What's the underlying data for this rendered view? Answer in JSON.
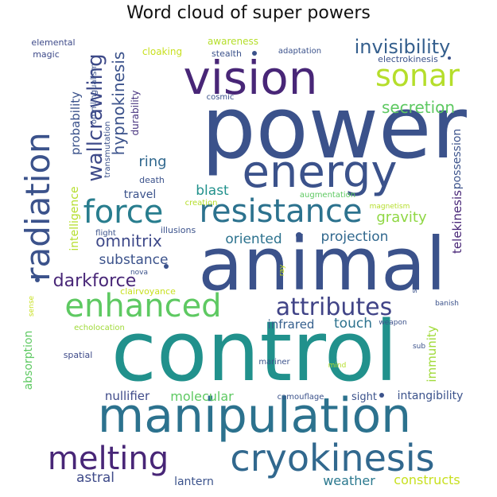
{
  "title": "Word cloud of super powers",
  "words": [
    {
      "text": "power",
      "color": "#3b528b"
    },
    {
      "text": "control",
      "color": "#21918c"
    },
    {
      "text": "animal",
      "color": "#3b528b"
    },
    {
      "text": "manipulation",
      "color": "#2c728e"
    },
    {
      "text": "energy",
      "color": "#3b528b"
    },
    {
      "text": "vision",
      "color": "#482677"
    },
    {
      "text": "cryokinesis",
      "color": "#31688e"
    },
    {
      "text": "resistance",
      "color": "#2c728e"
    },
    {
      "text": "force",
      "color": "#287d8e"
    },
    {
      "text": "radiation",
      "color": "#3b528b"
    },
    {
      "text": "enhanced",
      "color": "#5ec962"
    },
    {
      "text": "melting",
      "color": "#482677"
    },
    {
      "text": "attributes",
      "color": "#414487"
    },
    {
      "text": "sonar",
      "color": "#b5de2b"
    },
    {
      "text": "invisibility",
      "color": "#355f8d"
    },
    {
      "text": "wallcrawling",
      "color": "#3e4a89"
    },
    {
      "text": "hypnokinesis",
      "color": "#3b528b"
    },
    {
      "text": "secretion",
      "color": "#5ec962"
    },
    {
      "text": "darkforce",
      "color": "#482677"
    },
    {
      "text": "omnitrix",
      "color": "#3e4989"
    },
    {
      "text": "projection",
      "color": "#31688e"
    },
    {
      "text": "oriented",
      "color": "#2c728e"
    },
    {
      "text": "gravity",
      "color": "#8fd744"
    },
    {
      "text": "blast",
      "color": "#21918c"
    },
    {
      "text": "ring",
      "color": "#31688e"
    },
    {
      "text": "substance",
      "color": "#3b528b"
    },
    {
      "text": "travel",
      "color": "#3b528b"
    },
    {
      "text": "astral",
      "color": "#3e4a89"
    },
    {
      "text": "weather",
      "color": "#2a788e"
    },
    {
      "text": "constructs",
      "color": "#c8e020"
    },
    {
      "text": "lantern",
      "color": "#3b528b"
    },
    {
      "text": "nullifier",
      "color": "#3e4a89"
    },
    {
      "text": "molecular",
      "color": "#5ec962"
    },
    {
      "text": "intangibility",
      "color": "#3b528b"
    },
    {
      "text": "infrared",
      "color": "#355f8d"
    },
    {
      "text": "touch",
      "color": "#2c728e"
    },
    {
      "text": "immunity",
      "color": "#a0da39"
    },
    {
      "text": "telekinesis",
      "color": "#482677"
    },
    {
      "text": "possession",
      "color": "#3b528b"
    },
    {
      "text": "probability",
      "color": "#3b528b"
    },
    {
      "text": "intelligence",
      "color": "#b5de2b"
    },
    {
      "text": "durability",
      "color": "#46327e"
    },
    {
      "text": "absorption",
      "color": "#5ec962"
    },
    {
      "text": "sight",
      "color": "#3b528b"
    },
    {
      "text": "camouflage",
      "color": "#3b528b"
    },
    {
      "text": "spatial",
      "color": "#3e4a89"
    },
    {
      "text": "mariner",
      "color": "#3b528b"
    },
    {
      "text": "echolocation",
      "color": "#a0da39"
    },
    {
      "text": "clairvoyance",
      "color": "#c8e020"
    },
    {
      "text": "nova",
      "color": "#3b528b"
    },
    {
      "text": "illusions",
      "color": "#3b528b"
    },
    {
      "text": "flight",
      "color": "#3b528b"
    },
    {
      "text": "creation",
      "color": "#b5de2b"
    },
    {
      "text": "death",
      "color": "#3b528b"
    },
    {
      "text": "augmentation",
      "color": "#5ec962"
    },
    {
      "text": "magnetism",
      "color": "#b5de2b"
    },
    {
      "text": "cosmic",
      "color": "#3b528b"
    },
    {
      "text": "elemental",
      "color": "#3e4a89"
    },
    {
      "text": "magic",
      "color": "#3e4a89"
    },
    {
      "text": "cloaking",
      "color": "#c8e020"
    },
    {
      "text": "awareness",
      "color": "#b5de2b"
    },
    {
      "text": "stealth",
      "color": "#3b528b"
    },
    {
      "text": "adaptation",
      "color": "#3b528b"
    },
    {
      "text": "electrokinesis",
      "color": "#3b528b"
    },
    {
      "text": "omnilingualism",
      "color": "#3b528b"
    },
    {
      "text": "transmutation",
      "color": "#3b528b"
    },
    {
      "text": "banish",
      "color": "#3b528b"
    },
    {
      "text": "weapon",
      "color": "#3b528b"
    },
    {
      "text": "sub",
      "color": "#3b528b"
    },
    {
      "text": "mind",
      "color": "#b5de2b"
    },
    {
      "text": "super",
      "color": "#3b528b"
    },
    {
      "text": "ray",
      "color": "#c8e020"
    },
    {
      "text": "sense",
      "color": "#c8e020"
    }
  ]
}
